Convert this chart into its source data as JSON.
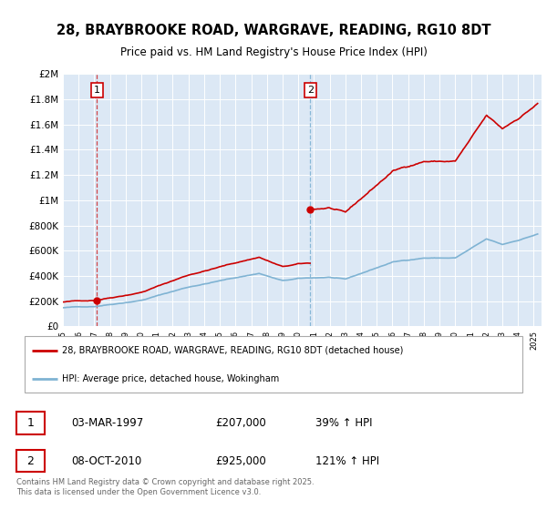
{
  "title": "28, BRAYBROOKE ROAD, WARGRAVE, READING, RG10 8DT",
  "subtitle": "Price paid vs. HM Land Registry's House Price Index (HPI)",
  "legend_line1": "28, BRAYBROOKE ROAD, WARGRAVE, READING, RG10 8DT (detached house)",
  "legend_line2": "HPI: Average price, detached house, Wokingham",
  "sale1_date": "03-MAR-1997",
  "sale1_price": "£207,000",
  "sale1_hpi": "39% ↑ HPI",
  "sale1_year": 1997.17,
  "sale1_value": 207000,
  "sale2_date": "08-OCT-2010",
  "sale2_price": "£925,000",
  "sale2_hpi": "121% ↑ HPI",
  "sale2_year": 2010.77,
  "sale2_value": 925000,
  "footer": "Contains HM Land Registry data © Crown copyright and database right 2025.\nThis data is licensed under the Open Government Licence v3.0.",
  "red_color": "#cc0000",
  "blue_color": "#7fb3d3",
  "plot_bg": "#dce8f5",
  "ylim_max": 2000000,
  "xlim_min": 1995,
  "xlim_max": 2025.5
}
